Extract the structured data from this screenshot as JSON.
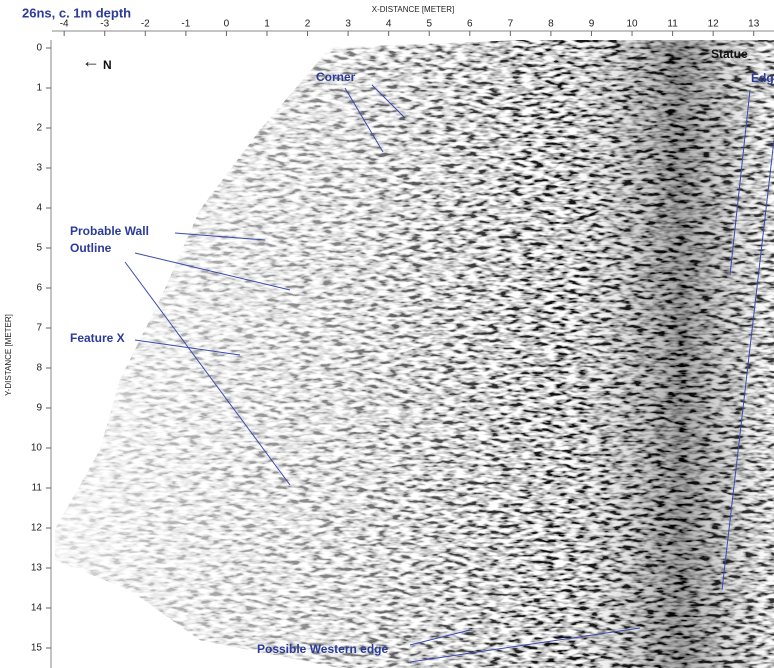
{
  "chart_data": {
    "type": "image",
    "title": "26ns, c. 1m depth",
    "x_label": "X-DISTANCE [METER]",
    "y_label": "Y-DISTANCE [METER]",
    "xlim": [
      -4.3,
      13.5
    ],
    "xticks": [
      -4,
      -3,
      -2,
      -1,
      0,
      1,
      2,
      3,
      4,
      5,
      6,
      7,
      8,
      9,
      10,
      11,
      12,
      13
    ],
    "ylim": [
      -0.2,
      15.5
    ],
    "yticks": [
      0,
      1,
      2,
      3,
      4,
      5,
      6,
      7,
      8,
      9,
      10,
      11,
      12,
      13,
      14,
      15
    ],
    "annotations": [
      "N",
      "Statue",
      "Edg",
      "Corner",
      "Probable Wall",
      "Outline",
      "Feature X",
      "Possible Western edge"
    ]
  }
}
